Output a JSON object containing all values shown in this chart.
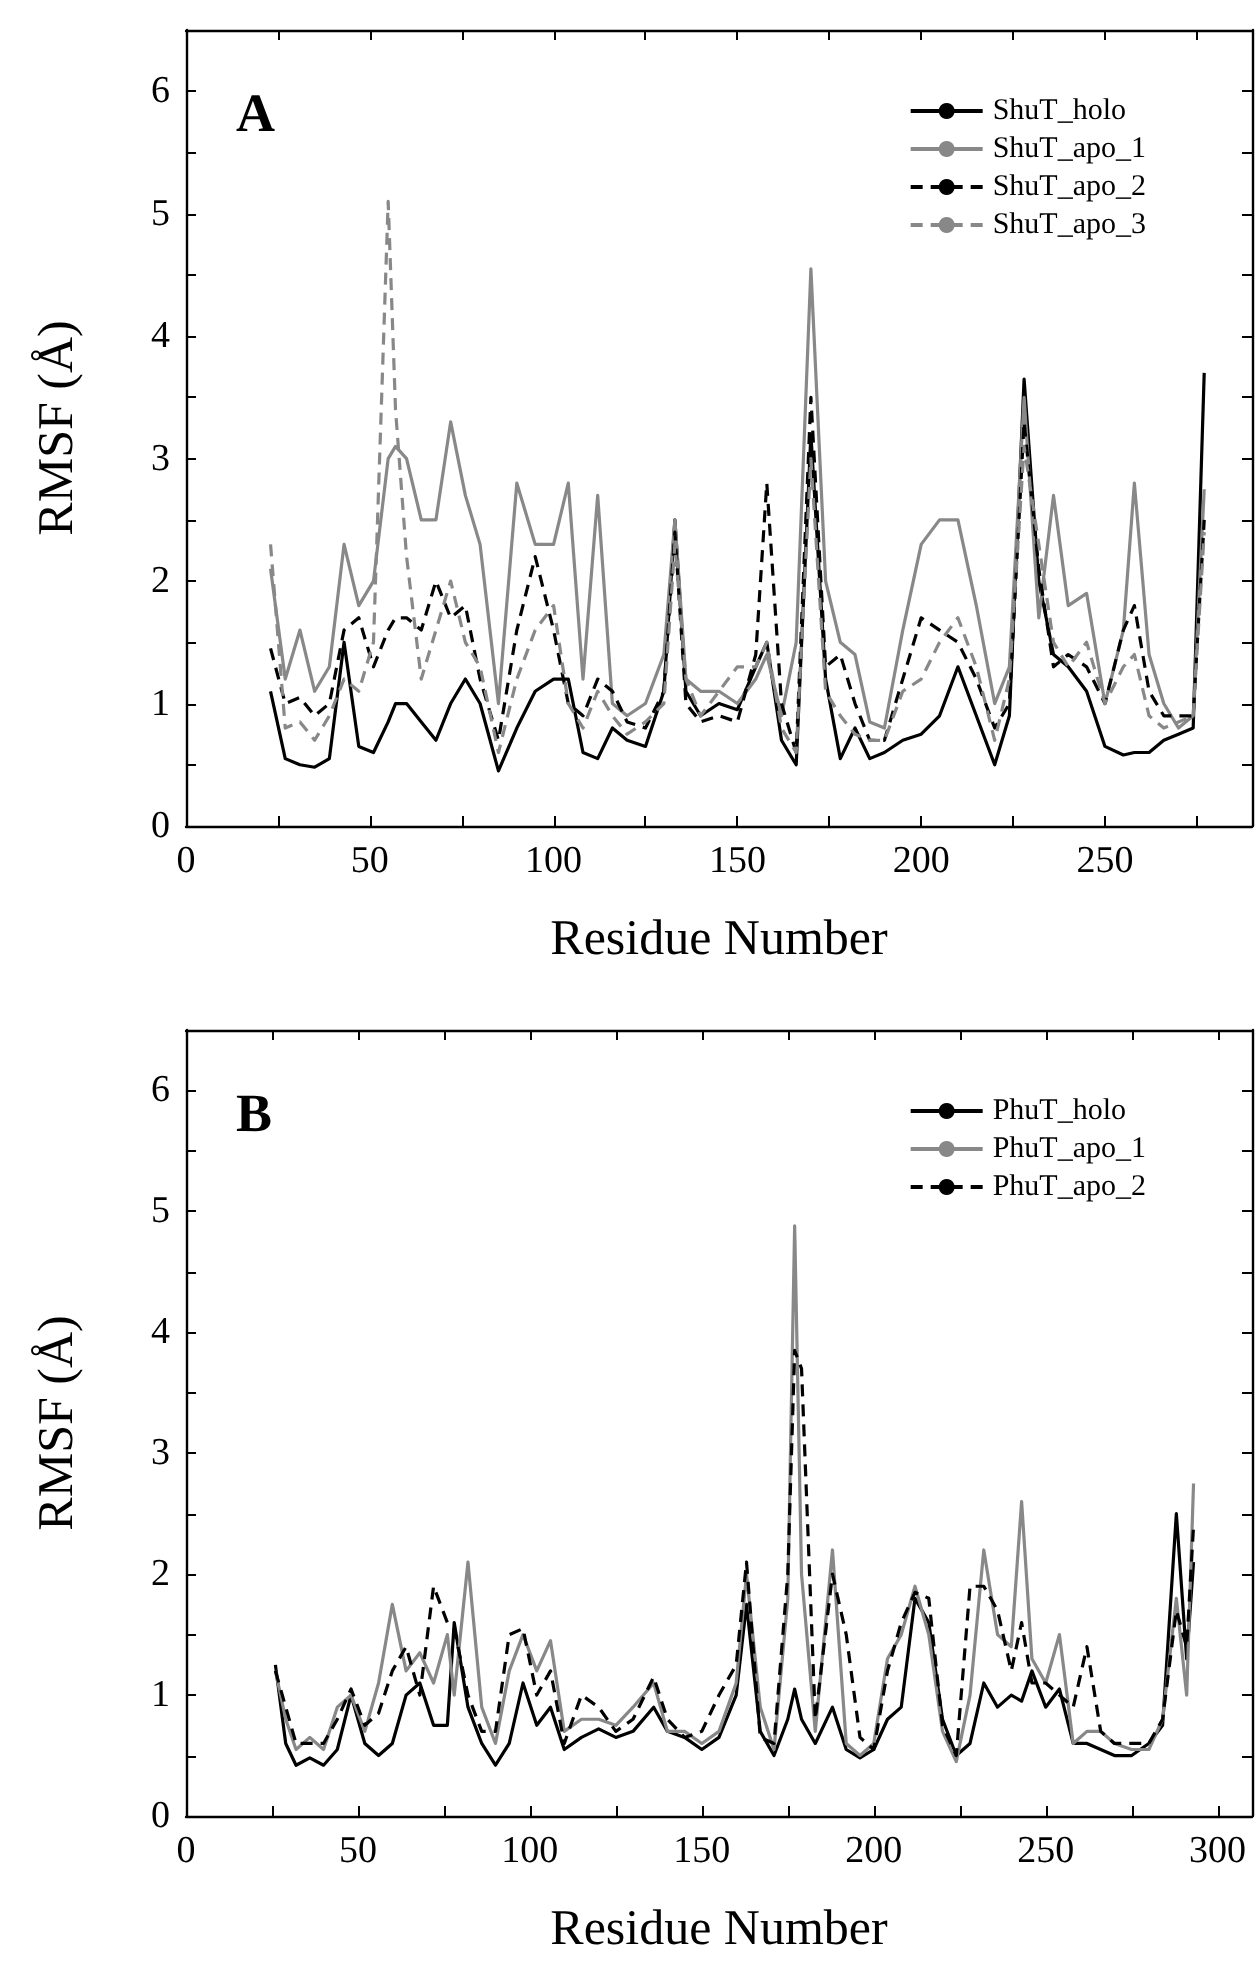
{
  "chart_data": [
    {
      "type": "line",
      "annotations": [
        "A"
      ],
      "xlabel": "Residue Number",
      "ylabel": "RMSF (Å)",
      "xlim": [
        0,
        290
      ],
      "ylim": [
        0,
        6.5
      ],
      "grid": false,
      "legend": "top right",
      "marker": "none",
      "xticks": [
        0,
        {
          "value": 25,
          "label": null
        },
        50,
        {
          "value": 75,
          "label": null
        },
        100,
        {
          "value": 125,
          "label": null
        },
        150,
        {
          "value": 175,
          "label": null
        },
        200,
        {
          "value": 225,
          "label": null
        },
        250,
        {
          "value": 275,
          "label": null
        }
      ],
      "yticks": [
        0,
        {
          "value": 0.5,
          "label": null
        },
        1,
        {
          "value": 1.5,
          "label": null
        },
        2,
        {
          "value": 2.5,
          "label": null
        },
        3,
        {
          "value": 3.5,
          "label": null
        },
        4,
        {
          "value": 4.5,
          "label": null
        },
        5,
        {
          "value": 5.5,
          "label": null
        },
        6
      ],
      "x": [
        23,
        27,
        31,
        35,
        39,
        43,
        47,
        51,
        55,
        57,
        60,
        64,
        68,
        72,
        76,
        80,
        85,
        90,
        95,
        100,
        104,
        108,
        112,
        116,
        120,
        125,
        130,
        133,
        136,
        140,
        145,
        150,
        155,
        158,
        162,
        166,
        170,
        174,
        178,
        182,
        186,
        190,
        195,
        200,
        205,
        210,
        215,
        220,
        224,
        228,
        232,
        236,
        240,
        245,
        250,
        255,
        258,
        262,
        266,
        270,
        274,
        277
      ],
      "series": [
        {
          "name": "ShuT_holo",
          "color": "#000000",
          "line_style": "solid",
          "values": [
            1.1,
            0.55,
            0.5,
            0.48,
            0.55,
            1.5,
            0.65,
            0.6,
            0.85,
            1.0,
            1.0,
            0.85,
            0.7,
            1.0,
            1.2,
            1.0,
            0.45,
            0.8,
            1.1,
            1.2,
            1.2,
            0.6,
            0.55,
            0.8,
            0.7,
            0.65,
            1.1,
            2.5,
            1.1,
            0.9,
            1.0,
            0.95,
            1.3,
            1.5,
            0.7,
            0.5,
            3.2,
            1.2,
            0.55,
            0.8,
            0.55,
            0.6,
            0.7,
            0.75,
            0.9,
            1.3,
            0.9,
            0.5,
            0.9,
            3.65,
            2.0,
            1.4,
            1.3,
            1.1,
            0.65,
            0.58,
            0.6,
            0.6,
            0.7,
            0.75,
            0.8,
            3.7
          ]
        },
        {
          "name": "ShuT_apo_1",
          "color": "#888888",
          "line_style": "solid",
          "values": [
            2.1,
            1.2,
            1.6,
            1.1,
            1.3,
            2.3,
            1.8,
            2.0,
            3.0,
            3.1,
            3.0,
            2.5,
            2.5,
            3.3,
            2.7,
            2.3,
            1.0,
            2.8,
            2.3,
            2.3,
            2.8,
            1.2,
            2.7,
            1.0,
            0.9,
            1.0,
            1.4,
            2.5,
            1.2,
            1.1,
            1.1,
            1.0,
            1.2,
            1.4,
            0.9,
            1.5,
            4.55,
            2.0,
            1.5,
            1.4,
            0.85,
            0.8,
            1.6,
            2.3,
            2.5,
            2.5,
            1.8,
            1.0,
            1.3,
            3.5,
            1.7,
            2.7,
            1.8,
            1.9,
            1.0,
            1.6,
            2.8,
            1.4,
            1.0,
            0.8,
            0.9,
            2.75
          ]
        },
        {
          "name": "ShuT_apo_2",
          "color": "#000000",
          "line_style": "dashed",
          "values": [
            1.45,
            1.0,
            1.05,
            0.9,
            1.0,
            1.6,
            1.7,
            1.3,
            1.6,
            1.7,
            1.7,
            1.6,
            2.0,
            1.7,
            1.8,
            1.2,
            0.7,
            1.6,
            2.2,
            1.6,
            1.0,
            0.9,
            1.2,
            1.1,
            0.85,
            0.8,
            1.1,
            2.4,
            1.0,
            0.85,
            0.9,
            0.85,
            1.4,
            2.8,
            1.0,
            0.6,
            3.5,
            1.3,
            1.4,
            1.0,
            0.7,
            0.7,
            1.2,
            1.7,
            1.6,
            1.5,
            1.2,
            0.8,
            1.0,
            3.3,
            2.1,
            1.3,
            1.4,
            1.3,
            1.0,
            1.6,
            1.8,
            1.1,
            0.9,
            0.9,
            0.9,
            2.5
          ]
        },
        {
          "name": "ShuT_apo_3",
          "color": "#888888",
          "line_style": "dashed",
          "values": [
            2.3,
            0.8,
            0.85,
            0.7,
            0.9,
            1.2,
            1.1,
            1.5,
            5.1,
            3.4,
            2.2,
            1.2,
            1.6,
            2.0,
            1.5,
            1.3,
            0.6,
            1.2,
            1.6,
            1.8,
            1.0,
            0.8,
            1.1,
            0.9,
            0.75,
            0.85,
            1.0,
            2.3,
            1.2,
            0.9,
            1.1,
            1.3,
            1.3,
            1.5,
            0.8,
            0.6,
            3.0,
            1.1,
            0.9,
            0.75,
            0.7,
            0.7,
            1.1,
            1.2,
            1.5,
            1.7,
            1.3,
            0.7,
            1.2,
            3.1,
            2.3,
            1.5,
            1.3,
            1.5,
            1.0,
            1.3,
            1.4,
            0.9,
            0.8,
            0.85,
            0.9,
            2.4
          ]
        }
      ]
    },
    {
      "type": "line",
      "annotations": [
        "B"
      ],
      "xlabel": "Residue Number",
      "ylabel": "RMSF (Å)",
      "xlim": [
        0,
        310
      ],
      "ylim": [
        0,
        6.5
      ],
      "grid": false,
      "legend": "top right",
      "marker": "none",
      "xticks": [
        0,
        {
          "value": 25,
          "label": null
        },
        50,
        {
          "value": 75,
          "label": null
        },
        100,
        {
          "value": 125,
          "label": null
        },
        150,
        {
          "value": 175,
          "label": null
        },
        200,
        {
          "value": 225,
          "label": null
        },
        250,
        {
          "value": 275,
          "label": null
        },
        300
      ],
      "yticks": [
        0,
        {
          "value": 0.5,
          "label": null
        },
        1,
        {
          "value": 1.5,
          "label": null
        },
        2,
        {
          "value": 2.5,
          "label": null
        },
        3,
        {
          "value": 3.5,
          "label": null
        },
        4,
        {
          "value": 4.5,
          "label": null
        },
        5,
        {
          "value": 5.5,
          "label": null
        },
        6
      ],
      "x": [
        26,
        29,
        32,
        36,
        40,
        44,
        48,
        52,
        56,
        60,
        64,
        68,
        72,
        76,
        78,
        82,
        86,
        90,
        94,
        98,
        102,
        106,
        110,
        115,
        120,
        125,
        130,
        136,
        140,
        145,
        150,
        155,
        160,
        163,
        167,
        171,
        175,
        177,
        179,
        183,
        188,
        192,
        196,
        200,
        204,
        208,
        212,
        216,
        220,
        224,
        228,
        232,
        236,
        240,
        243,
        246,
        250,
        254,
        258,
        262,
        266,
        270,
        275,
        280,
        284,
        288,
        291,
        293
      ],
      "series": [
        {
          "name": "PhuT_holo",
          "color": "#000000",
          "line_style": "solid",
          "values": [
            1.25,
            0.6,
            0.42,
            0.48,
            0.42,
            0.55,
            1.0,
            0.6,
            0.5,
            0.6,
            1.0,
            1.1,
            0.75,
            0.75,
            1.6,
            0.9,
            0.6,
            0.42,
            0.6,
            1.1,
            0.75,
            0.9,
            0.55,
            0.65,
            0.72,
            0.65,
            0.7,
            0.9,
            0.7,
            0.65,
            0.55,
            0.65,
            1.0,
            1.75,
            0.7,
            0.5,
            0.8,
            1.05,
            0.8,
            0.6,
            0.9,
            0.55,
            0.48,
            0.55,
            0.8,
            0.9,
            1.8,
            1.6,
            0.8,
            0.5,
            0.6,
            1.1,
            0.9,
            1.0,
            0.95,
            1.2,
            0.9,
            1.05,
            0.6,
            0.6,
            0.55,
            0.5,
            0.5,
            0.6,
            0.75,
            2.5,
            1.3,
            2.1
          ]
        },
        {
          "name": "PhuT_apo_1",
          "color": "#888888",
          "line_style": "solid",
          "values": [
            1.2,
            0.8,
            0.55,
            0.65,
            0.55,
            0.9,
            1.0,
            0.7,
            1.1,
            1.75,
            1.2,
            1.35,
            1.1,
            1.5,
            1.0,
            2.1,
            0.9,
            0.6,
            1.2,
            1.5,
            1.2,
            1.45,
            0.7,
            0.8,
            0.8,
            0.75,
            0.9,
            1.1,
            0.7,
            0.7,
            0.6,
            0.7,
            1.1,
            2.0,
            0.9,
            0.55,
            1.8,
            4.88,
            2.0,
            0.7,
            2.2,
            0.6,
            0.5,
            0.6,
            1.3,
            1.5,
            1.9,
            1.5,
            0.7,
            0.45,
            1.0,
            2.2,
            1.5,
            1.4,
            2.6,
            1.3,
            1.1,
            1.5,
            0.6,
            0.7,
            0.7,
            0.6,
            0.55,
            0.55,
            0.8,
            1.8,
            1.0,
            2.75
          ]
        },
        {
          "name": "PhuT_apo_2",
          "color": "#000000",
          "line_style": "dashed",
          "values": [
            1.2,
            0.9,
            0.6,
            0.6,
            0.6,
            0.8,
            1.05,
            0.75,
            0.85,
            1.2,
            1.4,
            1.0,
            1.9,
            1.6,
            1.55,
            1.0,
            0.7,
            0.7,
            1.5,
            1.55,
            1.0,
            1.2,
            0.6,
            1.0,
            0.9,
            0.7,
            0.8,
            1.15,
            0.8,
            0.65,
            0.7,
            1.0,
            1.25,
            2.1,
            0.65,
            0.6,
            2.0,
            3.85,
            3.7,
            0.8,
            2.0,
            1.5,
            0.65,
            0.55,
            1.2,
            1.6,
            1.85,
            1.8,
            0.75,
            0.5,
            1.9,
            1.9,
            1.7,
            1.2,
            1.6,
            1.1,
            1.1,
            1.0,
            0.9,
            1.4,
            0.7,
            0.6,
            0.6,
            0.6,
            0.8,
            1.7,
            1.4,
            2.4
          ]
        }
      ]
    }
  ]
}
